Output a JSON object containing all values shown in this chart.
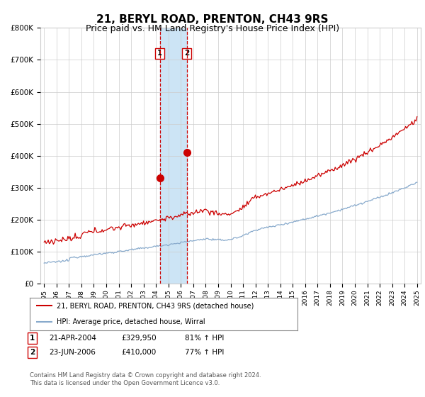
{
  "title": "21, BERYL ROAD, PRENTON, CH43 9RS",
  "subtitle": "Price paid vs. HM Land Registry's House Price Index (HPI)",
  "title_fontsize": 11,
  "subtitle_fontsize": 9,
  "ylabel_ticks": [
    "£0",
    "£100K",
    "£200K",
    "£300K",
    "£400K",
    "£500K",
    "£600K",
    "£700K",
    "£800K"
  ],
  "ytick_values": [
    0,
    100000,
    200000,
    300000,
    400000,
    500000,
    600000,
    700000,
    800000
  ],
  "ylim": [
    0,
    800000
  ],
  "x_start_year": 1995,
  "x_end_year": 2025,
  "transaction1_date": 2004.31,
  "transaction1_price": 329950,
  "transaction2_date": 2006.48,
  "transaction2_price": 410000,
  "shade_color": "#cce4f5",
  "vline_color": "#cc0000",
  "red_line_color": "#cc0000",
  "blue_line_color": "#88aacc",
  "legend_line1": "21, BERYL ROAD, PRENTON, CH43 9RS (detached house)",
  "legend_line2": "HPI: Average price, detached house, Wirral",
  "footer": "Contains HM Land Registry data © Crown copyright and database right 2024.\nThis data is licensed under the Open Government Licence v3.0.",
  "grid_color": "#cccccc",
  "background_color": "#ffffff"
}
